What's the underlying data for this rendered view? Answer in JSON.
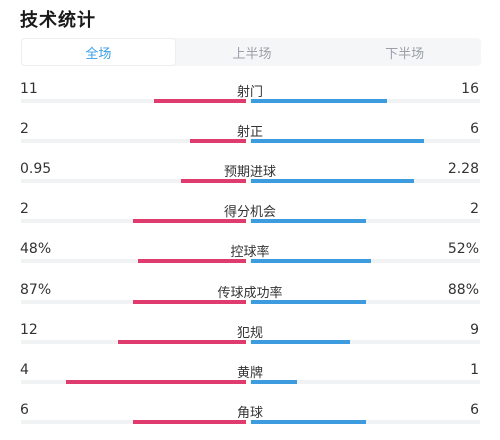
{
  "title": "技术统计",
  "colors": {
    "home": "#e03b6e",
    "away": "#3d9be0",
    "active_tab": "#3aa0e8"
  },
  "tabs": [
    {
      "label": "全场",
      "active": true
    },
    {
      "label": "上半场",
      "active": false
    },
    {
      "label": "下半场",
      "active": false
    }
  ],
  "stats": [
    {
      "label": "射门",
      "home": "11",
      "away": "16",
      "home_share": 0.41,
      "away_share": 0.59
    },
    {
      "label": "射正",
      "home": "2",
      "away": "6",
      "home_share": 0.25,
      "away_share": 0.75
    },
    {
      "label": "预期进球",
      "home": "0.95",
      "away": "2.28",
      "home_share": 0.29,
      "away_share": 0.71
    },
    {
      "label": "得分机会",
      "home": "2",
      "away": "2",
      "home_share": 0.5,
      "away_share": 0.5
    },
    {
      "label": "控球率",
      "home": "48%",
      "away": "52%",
      "home_share": 0.48,
      "away_share": 0.52
    },
    {
      "label": "传球成功率",
      "home": "87%",
      "away": "88%",
      "home_share": 0.5,
      "away_share": 0.5
    },
    {
      "label": "犯规",
      "home": "12",
      "away": "9",
      "home_share": 0.57,
      "away_share": 0.43
    },
    {
      "label": "黄牌",
      "home": "4",
      "away": "1",
      "home_share": 0.8,
      "away_share": 0.2
    },
    {
      "label": "角球",
      "home": "6",
      "away": "6",
      "home_share": 0.5,
      "away_share": 0.5
    }
  ]
}
